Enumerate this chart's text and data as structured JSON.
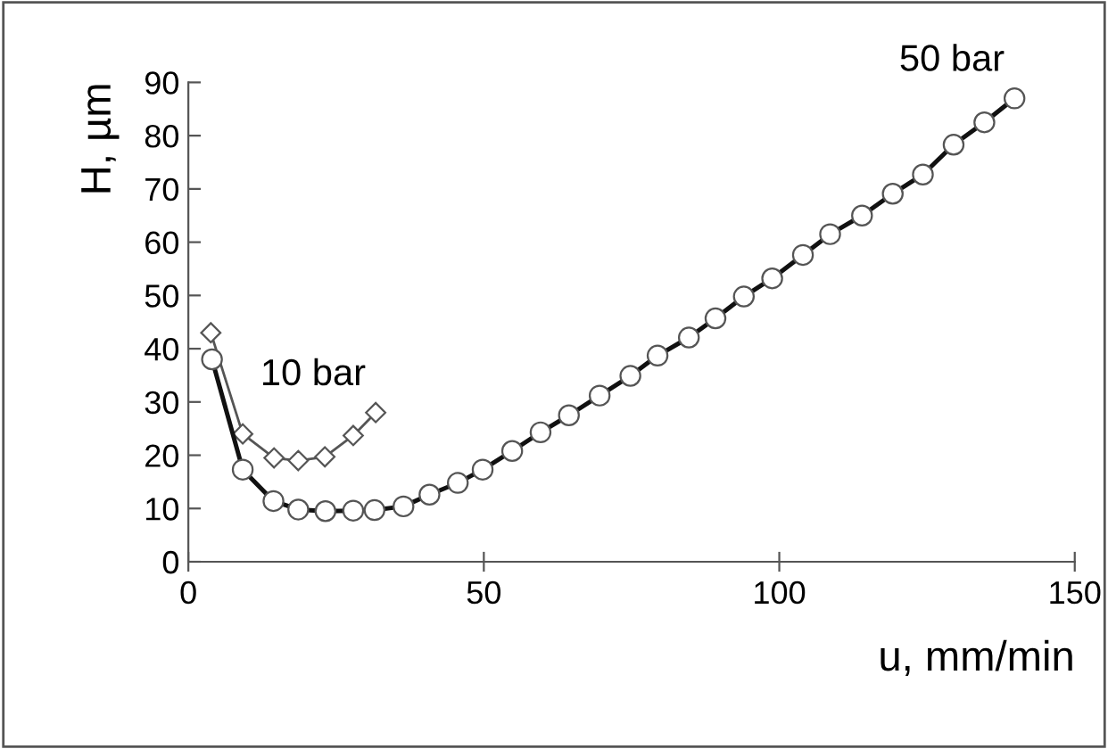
{
  "chart_data": {
    "type": "line",
    "xlabel": "u, mm/min",
    "ylabel": "H, µm",
    "xlim": [
      0,
      150
    ],
    "xticks": [
      0,
      50,
      100,
      150
    ],
    "ylim": [
      0,
      90
    ],
    "yticks": [
      0,
      10,
      20,
      30,
      40,
      50,
      60,
      70,
      80,
      90
    ],
    "grid": false,
    "legend": false,
    "series": [
      {
        "name": "10 bar",
        "color": "#555555",
        "marker": "diamond",
        "x": [
          3.8,
          9.2,
          14.5,
          18.6,
          23.1,
          27.9,
          31.7
        ],
        "values": [
          43,
          24,
          19.5,
          19,
          19.7,
          23.7,
          28
        ]
      },
      {
        "name": "50 bar",
        "color": "#111111",
        "marker": "circle",
        "x": [
          4,
          9.2,
          14.4,
          18.6,
          23.2,
          27.9,
          31.5,
          36.4,
          40.8,
          45.6,
          49.8,
          54.8,
          59.6,
          64.4,
          69.6,
          74.8,
          79.4,
          84.7,
          89.2,
          94,
          98.8,
          104,
          108.6,
          114,
          119.2,
          124.3,
          129.5,
          134.7,
          139.8
        ],
        "values": [
          38,
          17.3,
          11.4,
          9.8,
          9.5,
          9.6,
          9.7,
          10.4,
          12.6,
          14.8,
          17.3,
          20.8,
          24.3,
          27.5,
          31.2,
          34.9,
          38.7,
          42.1,
          45.7,
          49.8,
          53.2,
          57.6,
          61.5,
          65,
          69.1,
          72.7,
          78.3,
          82.5,
          87
        ]
      }
    ]
  }
}
